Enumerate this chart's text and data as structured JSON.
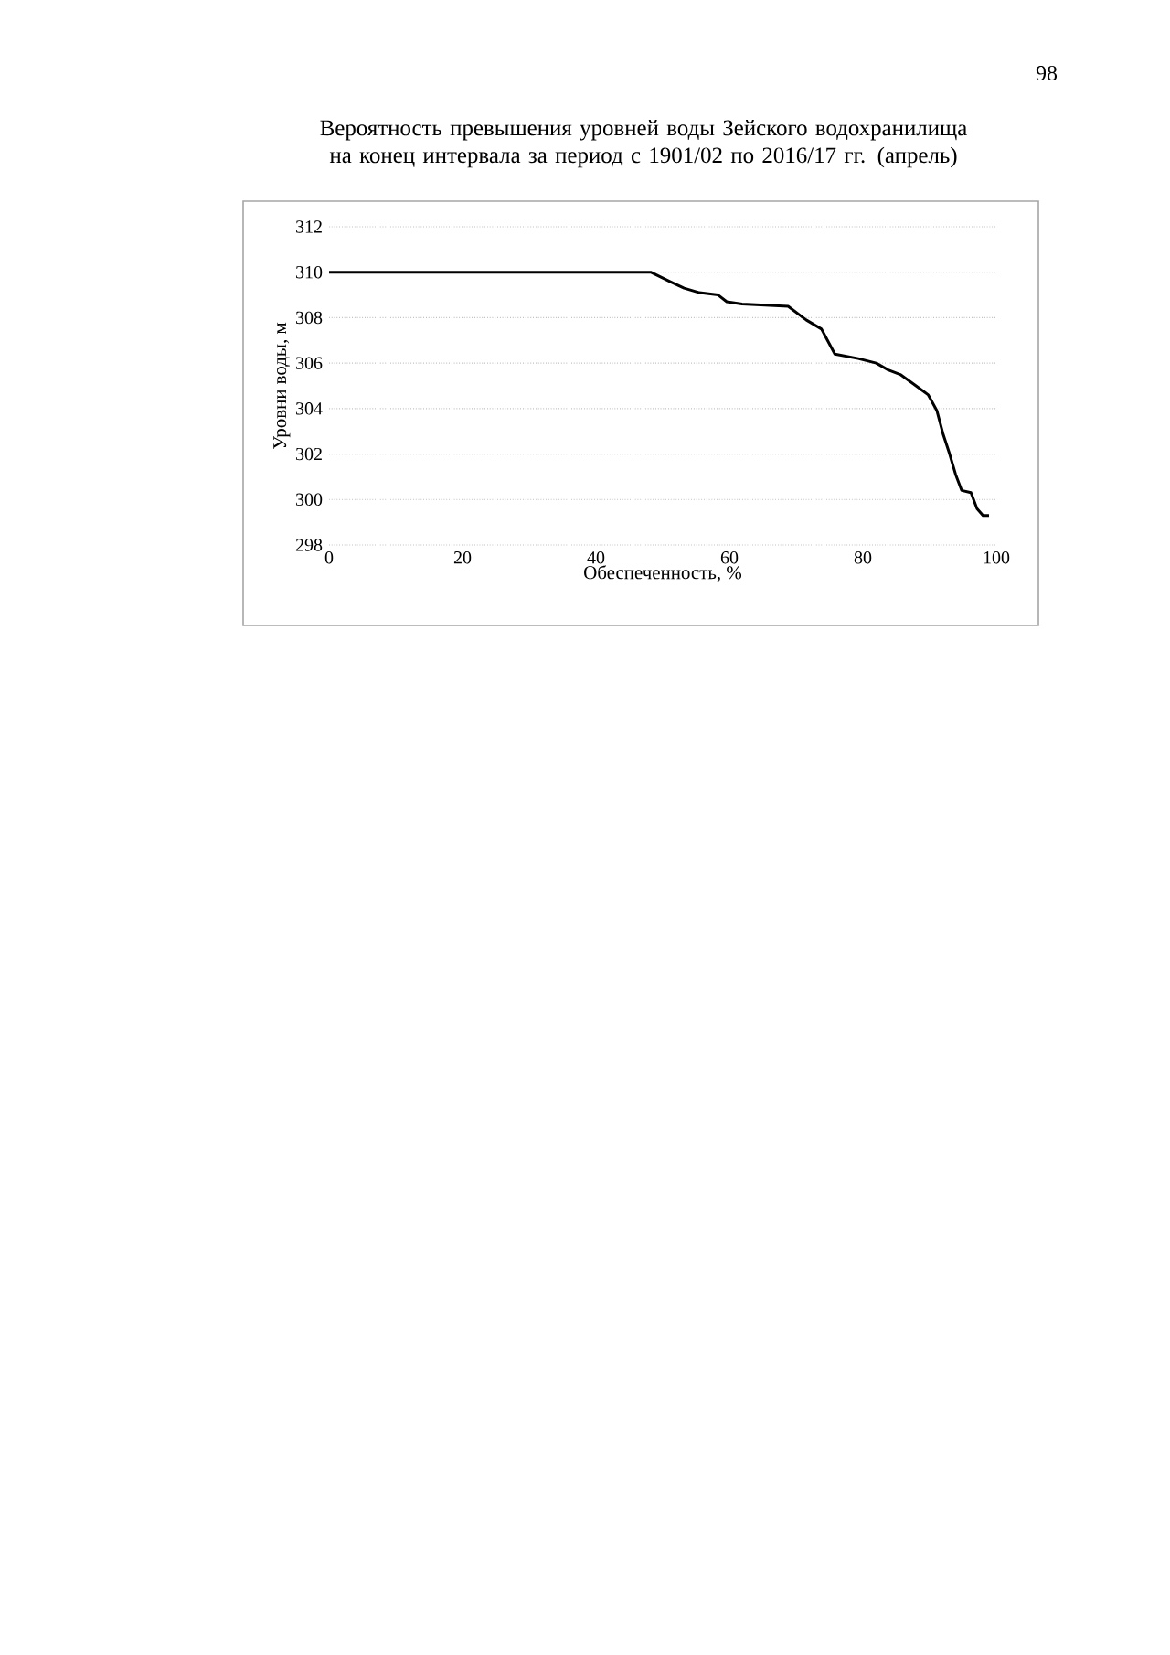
{
  "chart_data": {
    "type": "line",
    "title": "Вероятность превышения уровней воды Зейского водохранилища на конец интервала за период с 1901/02 по 2016/17 гг. (апрель)",
    "xlabel": "Обеспеченность, %",
    "ylabel": "Уровни воды, м",
    "annotations": [
      "98"
    ],
    "series": [
      {
        "color": "#000000",
        "x": [
          0,
          10,
          20,
          30,
          40,
          48.2,
          49.6,
          51,
          53.2,
          55.5,
          58.3,
          59.6,
          61.9,
          68.8,
          71.5,
          73.8,
          74.7,
          75.8,
          79.3,
          82,
          83.8,
          85.6,
          87.5,
          88.9,
          89.8,
          91.1,
          92,
          93,
          93.9,
          94.8,
          96.2,
          97.1,
          98,
          98.9
        ],
        "values": [
          310,
          310,
          310,
          310,
          310,
          310,
          309.8,
          309.6,
          309.3,
          309.1,
          309,
          308.7,
          308.6,
          308.5,
          307.9,
          307.5,
          307,
          306.4,
          306.2,
          306,
          305.7,
          305.5,
          305.1,
          304.8,
          304.6,
          303.9,
          302.9,
          302,
          301.1,
          300.4,
          300.3,
          299.6,
          299.3,
          299.3
        ]
      }
    ],
    "xlim": [
      0,
      100
    ],
    "ylim": [
      298,
      312
    ],
    "xticks": [
      0,
      20,
      40,
      60,
      80,
      100
    ],
    "yticks": [
      298,
      300,
      302,
      304,
      306,
      308,
      310,
      312
    ],
    "grid": "y",
    "marker": "none",
    "line_style": "solid"
  }
}
